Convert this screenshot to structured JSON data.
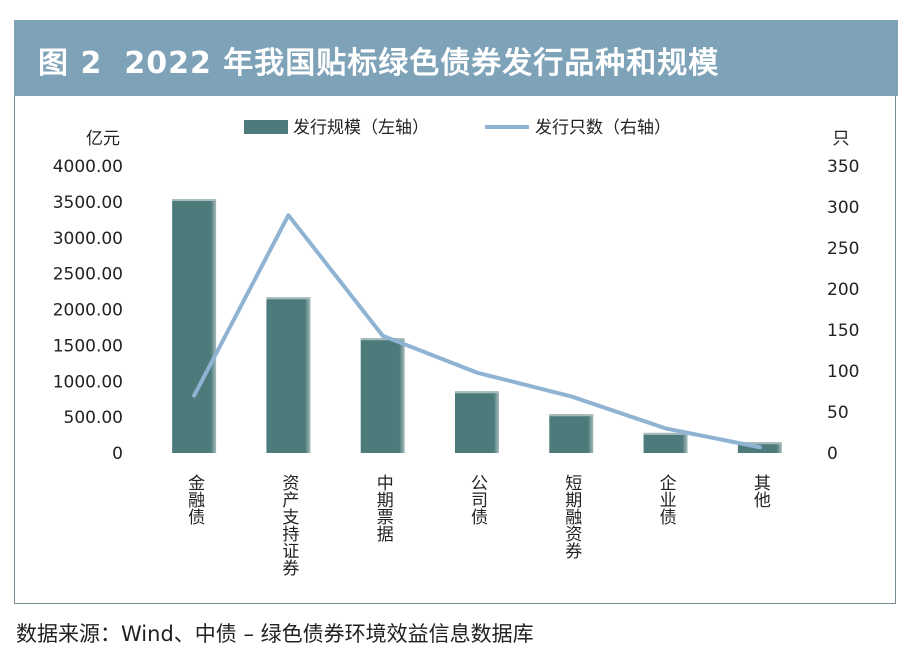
{
  "header": {
    "figure_number": "图 2",
    "title": "2022 年我国贴标绿色债券发行品种和规模"
  },
  "source": "数据来源：Wind、中债 – 绿色债券环境效益信息数据库",
  "colors": {
    "header_bg": "#7ea2b8",
    "bar": "#4d7b7b",
    "bar_highlight": "#a9bcbc",
    "line": "#8fb3d3"
  },
  "chart_data": {
    "type": "bar",
    "categories": [
      "金融债",
      "资产支持证券",
      "中期票据",
      "公司债",
      "短期融资券",
      "企业债",
      "其他"
    ],
    "series": [
      {
        "name": "发行规模（左轴）",
        "type": "bar",
        "axis": "left",
        "values": [
          3540,
          2170,
          1600,
          860,
          540,
          280,
          150
        ]
      },
      {
        "name": "发行只数（右轴）",
        "type": "line",
        "axis": "right",
        "values": [
          70,
          290,
          143,
          98,
          69,
          30,
          7
        ]
      }
    ],
    "left_axis": {
      "unit": "亿元",
      "min": 0,
      "max": 4000,
      "ticks": [
        "0",
        "500.00",
        "1000.00",
        "1500.00",
        "2000.00",
        "2500.00",
        "3000.00",
        "3500.00",
        "4000.00"
      ]
    },
    "right_axis": {
      "unit": "只",
      "min": 0,
      "max": 350,
      "ticks": [
        "0",
        "50",
        "100",
        "150",
        "200",
        "250",
        "300",
        "350"
      ]
    },
    "legend_position": "top-center",
    "grid": false
  }
}
